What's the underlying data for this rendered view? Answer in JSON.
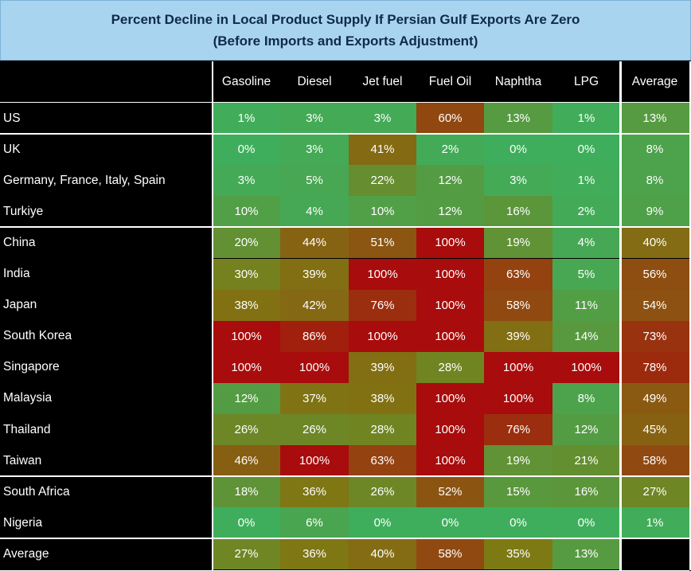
{
  "chart_data": {
    "type": "table",
    "title_line1": "Percent Decline in Local Product Supply If Persian Gulf Exports Are Zero",
    "title_line2": "(Before Imports and Exports Adjustment)",
    "columns": [
      "Gasoline",
      "Diesel",
      "Jet fuel",
      "Fuel Oil",
      "Naphtha",
      "LPG",
      "Average"
    ],
    "rows": [
      {
        "label": "US",
        "values": [
          "1%",
          "3%",
          "3%",
          "60%",
          "13%",
          "1%",
          "13%"
        ]
      },
      {
        "label": "UK",
        "values": [
          "0%",
          "3%",
          "41%",
          "2%",
          "0%",
          "0%",
          "8%"
        ]
      },
      {
        "label": "Germany, France, Italy, Spain",
        "values": [
          "3%",
          "5%",
          "22%",
          "12%",
          "3%",
          "1%",
          "8%"
        ]
      },
      {
        "label": "Turkiye",
        "values": [
          "10%",
          "4%",
          "10%",
          "12%",
          "16%",
          "2%",
          "9%"
        ]
      },
      {
        "label": "China",
        "values": [
          "20%",
          "44%",
          "51%",
          "100%",
          "19%",
          "4%",
          "40%"
        ]
      },
      {
        "label": "India",
        "values": [
          "30%",
          "39%",
          "100%",
          "100%",
          "63%",
          "5%",
          "56%"
        ]
      },
      {
        "label": "Japan",
        "values": [
          "38%",
          "42%",
          "76%",
          "100%",
          "58%",
          "11%",
          "54%"
        ]
      },
      {
        "label": "South Korea",
        "values": [
          "100%",
          "86%",
          "100%",
          "100%",
          "39%",
          "14%",
          "73%"
        ]
      },
      {
        "label": "Singapore",
        "values": [
          "100%",
          "100%",
          "39%",
          "28%",
          "100%",
          "100%",
          "78%"
        ]
      },
      {
        "label": "Malaysia",
        "values": [
          "12%",
          "37%",
          "38%",
          "100%",
          "100%",
          "8%",
          "49%"
        ]
      },
      {
        "label": "Thailand",
        "values": [
          "26%",
          "26%",
          "28%",
          "100%",
          "76%",
          "12%",
          "45%"
        ]
      },
      {
        "label": "Taiwan",
        "values": [
          "46%",
          "100%",
          "63%",
          "100%",
          "19%",
          "21%",
          "58%"
        ]
      },
      {
        "label": "South Africa",
        "values": [
          "18%",
          "36%",
          "26%",
          "52%",
          "15%",
          "16%",
          "27%"
        ]
      },
      {
        "label": "Nigeria",
        "values": [
          "0%",
          "6%",
          "0%",
          "0%",
          "0%",
          "0%",
          "1%"
        ]
      },
      {
        "label": "Average",
        "values": [
          "27%",
          "36%",
          "40%",
          "58%",
          "35%",
          "13%",
          ""
        ]
      }
    ],
    "color_scale": {
      "low": "#3fae5c",
      "mid": "#7d7a14",
      "high": "#a80c0c"
    }
  }
}
